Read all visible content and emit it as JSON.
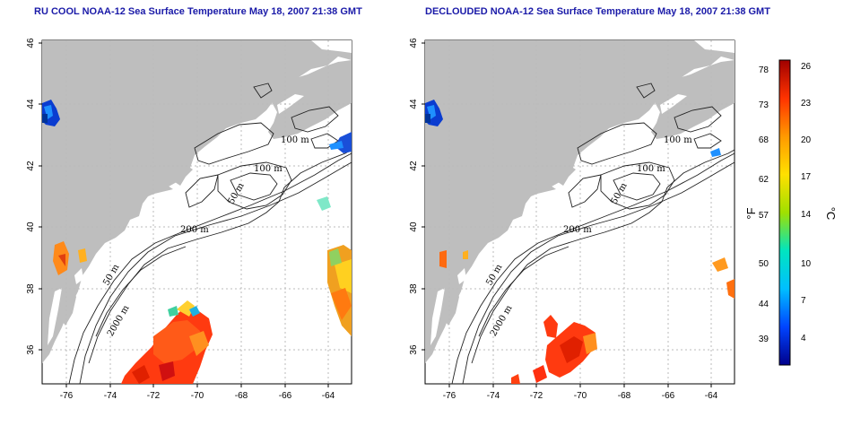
{
  "panels": [
    {
      "title": "RU COOL NOAA-12 Sea Surface Temperature May 18, 2007 21:38 GMT",
      "x_ticks": [
        "-76",
        "-74",
        "-72",
        "-70",
        "-68",
        "-66",
        "-64"
      ],
      "y_ticks": [
        "36",
        "38",
        "40",
        "42",
        "44",
        "46"
      ],
      "contour_labels": [
        "100 m",
        "100 m",
        "50 m",
        "200 m",
        "50 m",
        "2000 m"
      ]
    },
    {
      "title": "DECLOUDED NOAA-12 Sea Surface Temperature May 18, 2007 21:38 GMT",
      "x_ticks": [
        "-76",
        "-74",
        "-72",
        "-70",
        "-68",
        "-66",
        "-64"
      ],
      "y_ticks": [
        "36",
        "38",
        "40",
        "42",
        "44",
        "46"
      ],
      "contour_labels": [
        "100 m",
        "100 m",
        "50 m",
        "200 m",
        "50 m",
        "2000 m"
      ]
    }
  ],
  "colorbar": {
    "fahrenheit_ticks": [
      "78",
      "73",
      "68",
      "62",
      "57",
      "50",
      "44",
      "39"
    ],
    "celsius_ticks": [
      "26",
      "23",
      "20",
      "17",
      "14",
      "10",
      "7",
      "4"
    ],
    "unit_f": "°F",
    "unit_c": "°C",
    "colors": [
      "#00008b",
      "#0044ff",
      "#00bfff",
      "#00e5c0",
      "#a0e000",
      "#ffe000",
      "#ff9900",
      "#ff3300",
      "#a00000"
    ]
  },
  "colors": {
    "land": "#bebebe",
    "title": "#1a1aa8",
    "grid": "#bbbbbb"
  }
}
